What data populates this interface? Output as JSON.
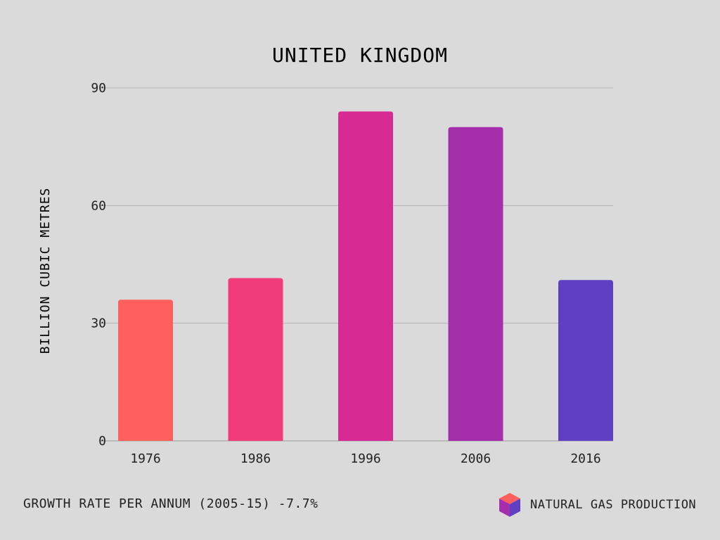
{
  "chart_data": {
    "type": "bar",
    "title": "UNITED KINGDOM",
    "ylabel": "BILLION CUBIC METRES",
    "xlabel": "",
    "categories": [
      "1976",
      "1986",
      "1996",
      "2006",
      "2016"
    ],
    "values": [
      36,
      41.5,
      84,
      80,
      41
    ],
    "ylim": [
      0,
      90
    ],
    "yticks": [
      0,
      30,
      60,
      90
    ],
    "grid": true,
    "bar_colors": [
      "#ff5f5d",
      "#f23b7a",
      "#d72a92",
      "#a52eab",
      "#5f3fc2"
    ]
  },
  "footer": {
    "growth_text": "GROWTH RATE PER ANNUM (2005-15) -7.7%"
  },
  "legend": {
    "label": "NATURAL GAS PRODUCTION",
    "icon": "cube-icon",
    "icon_colors": {
      "top": "#ff5f5d",
      "left": "#a52eab",
      "right": "#5f3fc2"
    }
  }
}
